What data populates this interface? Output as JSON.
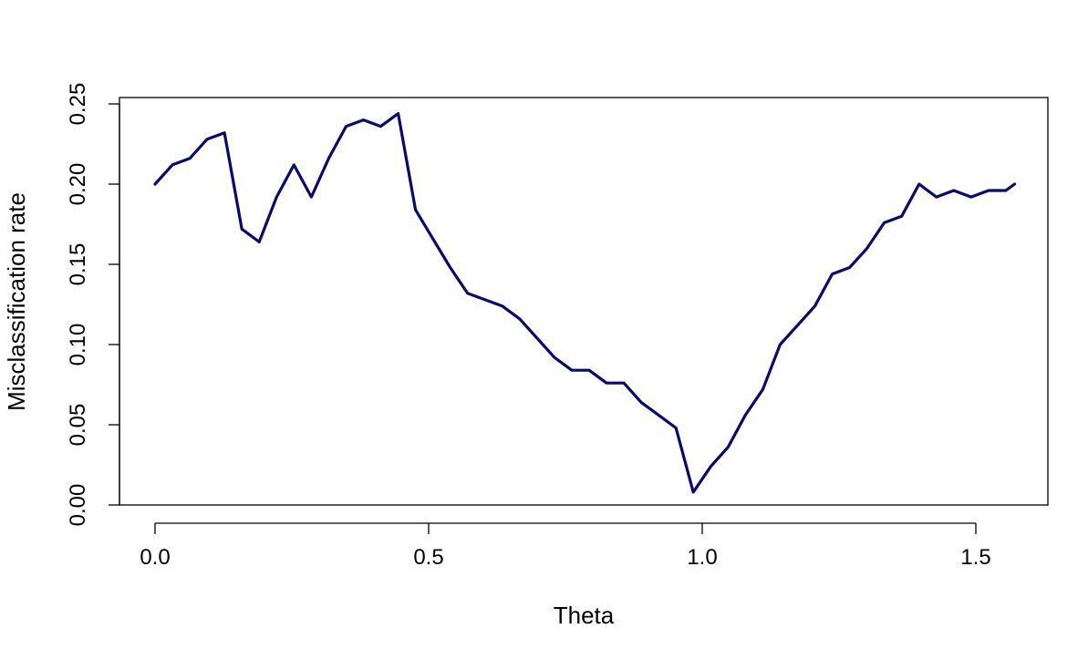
{
  "chart_data": {
    "type": "line",
    "title": "",
    "xlabel": "Theta",
    "ylabel": "Misclassification rate",
    "xlim": [
      0,
      1.5708
    ],
    "ylim": [
      0,
      0.25
    ],
    "x_ticks": [
      0.0,
      0.5,
      1.0,
      1.5
    ],
    "x_tick_labels": [
      "0.0",
      "0.5",
      "1.0",
      "1.5"
    ],
    "y_ticks": [
      0.0,
      0.05,
      0.1,
      0.15,
      0.2,
      0.25
    ],
    "y_tick_labels": [
      "0.00",
      "0.05",
      "0.10",
      "0.15",
      "0.20",
      "0.25"
    ],
    "grid": false,
    "legend": "none",
    "line_color": "#0a0a6e",
    "series": [
      {
        "x": [
          0.0,
          0.0317,
          0.0635,
          0.0952,
          0.1269,
          0.1587,
          0.1904,
          0.2221,
          0.2539,
          0.2856,
          0.3173,
          0.3491,
          0.3808,
          0.4125,
          0.4443,
          0.476,
          0.5077,
          0.5395,
          0.5712,
          0.6029,
          0.6347,
          0.6664,
          0.6981,
          0.7299,
          0.7616,
          0.7933,
          0.8251,
          0.8568,
          0.8885,
          0.9203,
          0.952,
          0.9837,
          1.0155,
          1.0472,
          1.0789,
          1.1107,
          1.1424,
          1.1741,
          1.2059,
          1.2376,
          1.2693,
          1.3011,
          1.3328,
          1.3645,
          1.3963,
          1.428,
          1.4597,
          1.4915,
          1.5232,
          1.5549,
          1.5708
        ],
        "values": [
          0.2,
          0.212,
          0.216,
          0.228,
          0.232,
          0.172,
          0.164,
          0.192,
          0.212,
          0.192,
          0.216,
          0.236,
          0.24,
          0.236,
          0.244,
          0.184,
          0.166,
          0.148,
          0.132,
          0.128,
          0.124,
          0.116,
          0.104,
          0.092,
          0.084,
          0.084,
          0.076,
          0.076,
          0.064,
          0.056,
          0.048,
          0.008,
          0.024,
          0.036,
          0.056,
          0.072,
          0.1,
          0.112,
          0.124,
          0.144,
          0.148,
          0.16,
          0.176,
          0.18,
          0.2,
          0.192,
          0.196,
          0.192,
          0.196,
          0.196,
          0.2
        ]
      }
    ]
  }
}
